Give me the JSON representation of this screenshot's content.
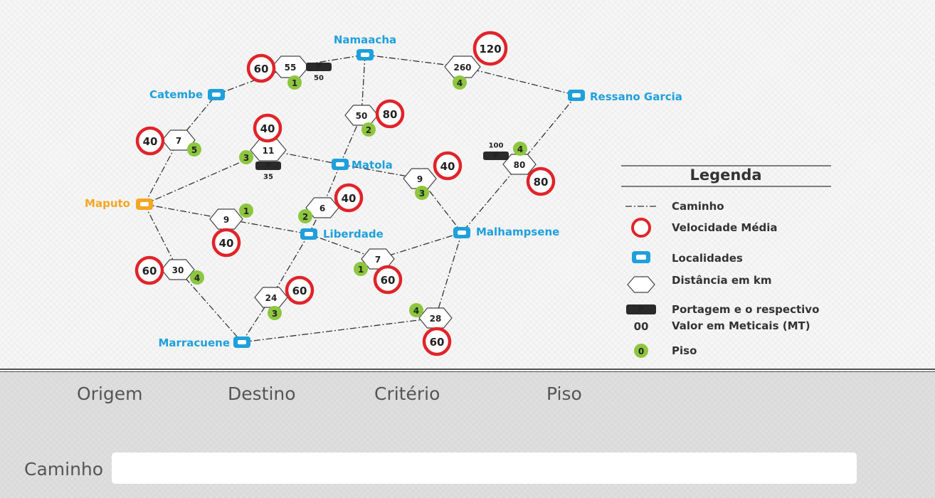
{
  "colors": {
    "loc_blue": "#1ea0dc",
    "origin_orange": "#f5a623",
    "speed_red": "#e0242a",
    "piso_green": "#8dc63f",
    "toll_dark": "#2a2a2a",
    "panel_grey": "#dadada"
  },
  "locations": [
    {
      "id": "maputo",
      "name": "Maputo",
      "type": "origin"
    },
    {
      "id": "catembe",
      "name": "Catembe",
      "type": "locality"
    },
    {
      "id": "namaacha",
      "name": "Namaacha",
      "type": "locality"
    },
    {
      "id": "ressano",
      "name": "Ressano Garcia",
      "type": "locality"
    },
    {
      "id": "matola",
      "name": "Matola",
      "type": "locality"
    },
    {
      "id": "liberdade",
      "name": "Liberdade",
      "type": "locality"
    },
    {
      "id": "malhampsene",
      "name": "Malhampsene",
      "type": "locality"
    },
    {
      "id": "marracuene",
      "name": "Marracuene",
      "type": "locality"
    }
  ],
  "segments": [
    {
      "id": "maputo-catembe",
      "distance": "7",
      "speed": "40",
      "piso": "5"
    },
    {
      "id": "catembe-namaacha",
      "distance": "55",
      "speed": "60",
      "piso": "1",
      "toll_label": "P",
      "toll": "50"
    },
    {
      "id": "namaacha-ressano",
      "distance": "260",
      "speed": "120",
      "piso": "4"
    },
    {
      "id": "maputo-matola",
      "distance": "11",
      "speed": "40",
      "piso": "3",
      "toll_label": "P",
      "toll": "35"
    },
    {
      "id": "namaacha-matola",
      "distance": "50",
      "speed": "80",
      "piso": "2"
    },
    {
      "id": "ressano-malhampsene",
      "distance": "80",
      "speed": "80",
      "piso": "4",
      "toll_label": "P",
      "toll": "100"
    },
    {
      "id": "matola-malhampsene",
      "distance": "9",
      "speed": "40",
      "piso": "3"
    },
    {
      "id": "matola-liberdade",
      "distance": "6",
      "speed": "40",
      "piso": "2"
    },
    {
      "id": "maputo-liberdade",
      "distance": "9",
      "speed": "40",
      "piso": "1"
    },
    {
      "id": "liberdade-malhampsene",
      "distance": "7",
      "speed": "60",
      "piso": "1"
    },
    {
      "id": "maputo-marracuene",
      "distance": "30",
      "speed": "60",
      "piso": "4"
    },
    {
      "id": "liberdade-marracuene",
      "distance": "24",
      "speed": "60",
      "piso": "3"
    },
    {
      "id": "marracuene-malhampsene",
      "distance": "28",
      "speed": "60",
      "piso": "4"
    }
  ],
  "legend": {
    "title": "Legenda",
    "items": {
      "caminho": "Caminho",
      "velocidade": "Velocidade Média",
      "localidades": "Localidades",
      "distancia": "Distância em km",
      "portagem": "Portagem e o respectivo",
      "valor": "Valor em Meticais (MT)",
      "piso": "Piso",
      "toll_icon_label": "P",
      "toll_value_sample": "00",
      "piso_sample": "0"
    }
  },
  "controls": {
    "origem": "Origem",
    "destino": "Destino",
    "criterio": "Critério",
    "piso": "Piso",
    "caminho": "Caminho",
    "caminho_value": ""
  }
}
